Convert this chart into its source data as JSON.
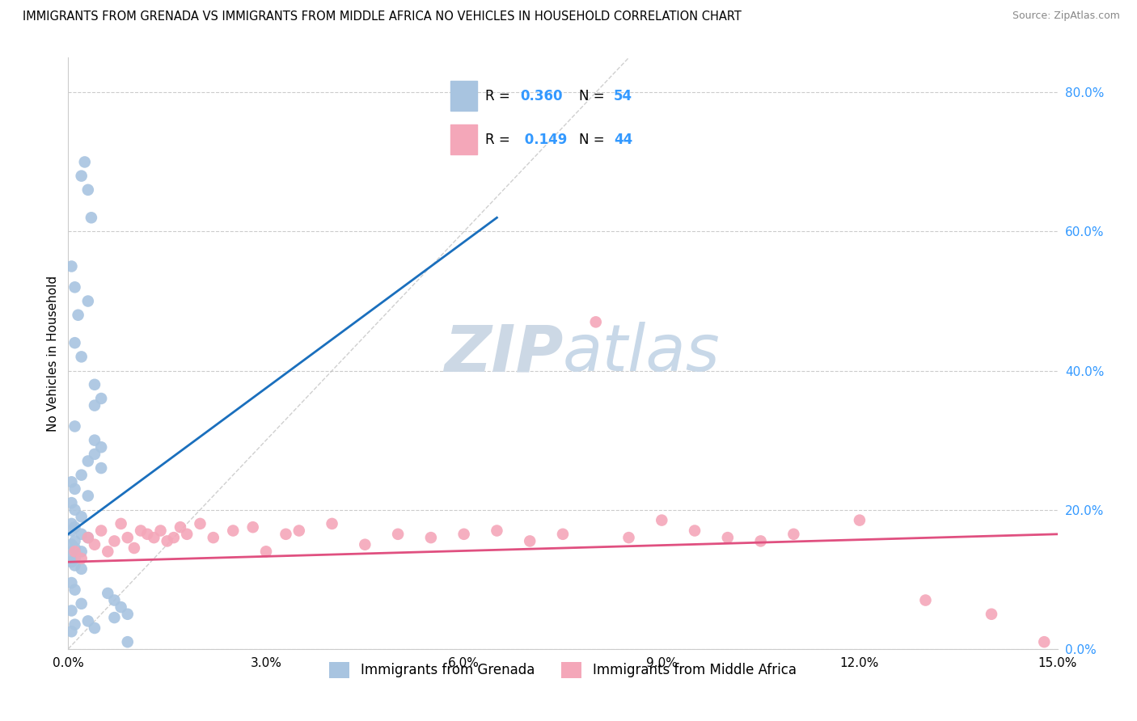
{
  "title": "IMMIGRANTS FROM GRENADA VS IMMIGRANTS FROM MIDDLE AFRICA NO VEHICLES IN HOUSEHOLD CORRELATION CHART",
  "source": "Source: ZipAtlas.com",
  "xlabel_grenada": "Immigrants from Grenada",
  "xlabel_middle_africa": "Immigrants from Middle Africa",
  "ylabel": "No Vehicles in Household",
  "xlim": [
    0.0,
    0.15
  ],
  "ylim": [
    0.0,
    0.85
  ],
  "xtick_labels": [
    "0.0%",
    "3.0%",
    "6.0%",
    "9.0%",
    "12.0%",
    "15.0%"
  ],
  "xtick_vals": [
    0.0,
    0.03,
    0.06,
    0.09,
    0.12,
    0.15
  ],
  "ytick_vals": [
    0.0,
    0.2,
    0.4,
    0.6,
    0.8
  ],
  "ytick_labels": [
    "0.0%",
    "20.0%",
    "40.0%",
    "60.0%",
    "80.0%"
  ],
  "R_grenada": 0.36,
  "N_grenada": 54,
  "R_middle": 0.149,
  "N_middle": 44,
  "color_grenada": "#a8c4e0",
  "color_middle": "#f4a7b9",
  "line_color_grenada": "#1a6fbd",
  "line_color_middle": "#e05080",
  "watermark_zip": "ZIP",
  "watermark_atlas": "atlas",
  "watermark_color": "#ccd8e5",
  "grenada_x": [
    0.0005,
    0.001,
    0.0015,
    0.001,
    0.002,
    0.0025,
    0.002,
    0.003,
    0.0035,
    0.001,
    0.004,
    0.005,
    0.004,
    0.003,
    0.005,
    0.002,
    0.0005,
    0.001,
    0.003,
    0.0005,
    0.001,
    0.002,
    0.0005,
    0.001,
    0.0005,
    0.002,
    0.003,
    0.001,
    0.0005,
    0.001,
    0.002,
    0.0005,
    0.001,
    0.0005,
    0.001,
    0.002,
    0.004,
    0.003,
    0.005,
    0.006,
    0.007,
    0.008,
    0.009,
    0.007,
    0.003,
    0.004,
    0.004,
    0.009,
    0.0005,
    0.001,
    0.002,
    0.0005,
    0.001,
    0.0005
  ],
  "grenada_y": [
    0.55,
    0.52,
    0.48,
    0.44,
    0.42,
    0.7,
    0.68,
    0.66,
    0.62,
    0.32,
    0.3,
    0.29,
    0.28,
    0.27,
    0.26,
    0.25,
    0.24,
    0.23,
    0.22,
    0.21,
    0.2,
    0.19,
    0.18,
    0.175,
    0.17,
    0.165,
    0.16,
    0.155,
    0.15,
    0.145,
    0.14,
    0.135,
    0.13,
    0.125,
    0.12,
    0.115,
    0.38,
    0.5,
    0.36,
    0.08,
    0.07,
    0.06,
    0.05,
    0.045,
    0.04,
    0.03,
    0.35,
    0.01,
    0.095,
    0.085,
    0.065,
    0.055,
    0.035,
    0.025
  ],
  "middle_x": [
    0.001,
    0.002,
    0.003,
    0.004,
    0.005,
    0.006,
    0.007,
    0.008,
    0.009,
    0.01,
    0.011,
    0.012,
    0.013,
    0.014,
    0.015,
    0.016,
    0.017,
    0.018,
    0.02,
    0.022,
    0.025,
    0.028,
    0.03,
    0.033,
    0.035,
    0.04,
    0.045,
    0.05,
    0.055,
    0.06,
    0.065,
    0.07,
    0.075,
    0.08,
    0.085,
    0.09,
    0.095,
    0.1,
    0.105,
    0.11,
    0.12,
    0.13,
    0.14,
    0.148
  ],
  "middle_y": [
    0.14,
    0.13,
    0.16,
    0.15,
    0.17,
    0.14,
    0.155,
    0.18,
    0.16,
    0.145,
    0.17,
    0.165,
    0.16,
    0.17,
    0.155,
    0.16,
    0.175,
    0.165,
    0.18,
    0.16,
    0.17,
    0.175,
    0.14,
    0.165,
    0.17,
    0.18,
    0.15,
    0.165,
    0.16,
    0.165,
    0.17,
    0.155,
    0.165,
    0.47,
    0.16,
    0.185,
    0.17,
    0.16,
    0.155,
    0.165,
    0.185,
    0.07,
    0.05,
    0.01
  ],
  "grenada_line_x": [
    0.0,
    0.065
  ],
  "grenada_line_y": [
    0.165,
    0.62
  ],
  "middle_line_x": [
    0.0,
    0.15
  ],
  "middle_line_y": [
    0.125,
    0.165
  ]
}
